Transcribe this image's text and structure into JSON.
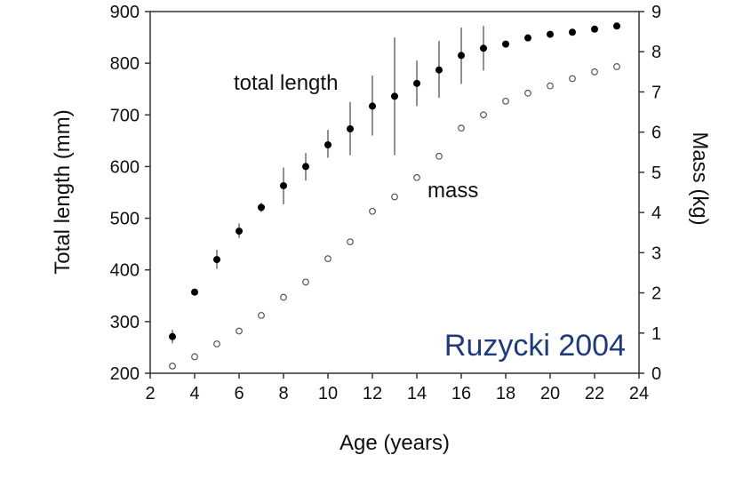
{
  "chart_data": {
    "type": "scatter",
    "xlabel": "Age (years)",
    "ylabel_left": "Total length (mm)",
    "ylabel_right": "Mass (kg)",
    "xlim": [
      2,
      24
    ],
    "ylim_left": [
      200,
      900
    ],
    "ylim_right": [
      0,
      9
    ],
    "x_ticks": [
      2,
      4,
      6,
      8,
      10,
      12,
      14,
      16,
      18,
      20,
      22,
      24
    ],
    "y_ticks_left": [
      200,
      300,
      400,
      500,
      600,
      700,
      800,
      900
    ],
    "y_ticks_right": [
      0,
      1,
      2,
      3,
      4,
      5,
      6,
      7,
      8,
      9
    ],
    "grid": false,
    "series": [
      {
        "name": "total length",
        "axis": "left",
        "marker": "filled-circle",
        "color": "#000000",
        "x": [
          3,
          4,
          5,
          6,
          7,
          8,
          9,
          10,
          11,
          12,
          13,
          14,
          15,
          16,
          17,
          18,
          19,
          20,
          21,
          22,
          23
        ],
        "y": [
          271,
          357,
          420,
          475,
          521,
          563,
          600,
          642,
          673,
          717,
          736,
          761,
          787,
          815,
          829,
          837,
          849,
          856,
          860,
          866,
          872
        ],
        "y_low": [
          258,
          352,
          402,
          462,
          512,
          527,
          573,
          617,
          622,
          660,
          622,
          717,
          733,
          760,
          786,
          837,
          849,
          856,
          860,
          866,
          872
        ],
        "y_high": [
          284,
          362,
          439,
          490,
          530,
          598,
          626,
          671,
          725,
          776,
          850,
          805,
          843,
          869,
          872,
          837,
          849,
          856,
          860,
          866,
          872
        ]
      },
      {
        "name": "mass",
        "axis": "right",
        "marker": "open-circle",
        "color": "#555555",
        "x": [
          3,
          4,
          5,
          6,
          7,
          8,
          9,
          10,
          11,
          12,
          13,
          14,
          15,
          16,
          17,
          18,
          19,
          20,
          21,
          22,
          23
        ],
        "y": [
          0.18,
          0.41,
          0.73,
          1.05,
          1.44,
          1.89,
          2.27,
          2.85,
          3.27,
          4.03,
          4.39,
          4.87,
          5.4,
          6.1,
          6.43,
          6.77,
          6.97,
          7.15,
          7.33,
          7.5,
          7.63
        ]
      }
    ],
    "annotations": {
      "source": "Ruzycki 2004",
      "source_color": "#1f3a7a"
    }
  }
}
